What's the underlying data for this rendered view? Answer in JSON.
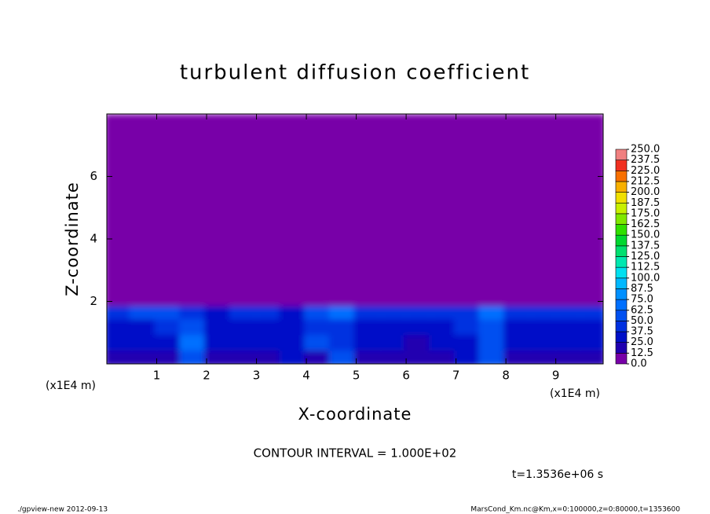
{
  "chart_data": {
    "type": "heatmap",
    "title": "turbulent diffusion coefficient",
    "x_label": "X-coordinate",
    "y_label": "Z-coordinate",
    "x_unit": "(x1E4 m)",
    "y_unit": "(x1E4 m)",
    "xlim": [
      0,
      9.95
    ],
    "ylim": [
      0,
      8
    ],
    "xticks": [
      1,
      2,
      3,
      4,
      5,
      6,
      7,
      8,
      9
    ],
    "yticks": [
      2,
      4,
      6
    ],
    "x_edges": [
      0,
      0.5,
      1,
      1.5,
      2,
      2.5,
      3,
      3.5,
      4,
      4.5,
      5,
      5.5,
      6,
      6.5,
      7,
      7.5,
      8,
      8.5,
      9,
      9.5,
      9.95
    ],
    "z_edges": [
      0,
      0.5,
      1,
      1.5,
      2,
      8
    ],
    "values": [
      [
        20,
        18,
        22,
        60,
        22,
        20,
        18,
        25,
        20,
        55,
        22,
        18,
        20,
        22,
        25,
        62,
        20,
        18,
        22,
        20
      ],
      [
        25,
        28,
        30,
        65,
        30,
        28,
        25,
        30,
        50,
        45,
        28,
        25,
        22,
        28,
        30,
        60,
        28,
        25,
        28,
        25
      ],
      [
        30,
        32,
        40,
        55,
        35,
        30,
        30,
        35,
        45,
        40,
        32,
        30,
        30,
        35,
        40,
        55,
        35,
        30,
        32,
        30
      ],
      [
        45,
        55,
        50,
        40,
        35,
        38,
        40,
        35,
        50,
        65,
        45,
        40,
        38,
        40,
        45,
        70,
        45,
        40,
        40,
        45
      ],
      [
        0,
        0,
        0,
        0,
        0,
        0,
        0,
        0,
        0,
        0,
        0,
        0,
        0,
        0,
        0,
        0,
        0,
        0,
        0,
        0
      ]
    ],
    "colorbar": {
      "ticks": [
        {
          "value": 0,
          "label": "0.0"
        },
        {
          "value": 12.5,
          "label": "12.5"
        },
        {
          "value": 25,
          "label": "25.0"
        },
        {
          "value": 37.5,
          "label": "37.5"
        },
        {
          "value": 50,
          "label": "50.0"
        },
        {
          "value": 62.5,
          "label": "62.5"
        },
        {
          "value": 75,
          "label": "75.0"
        },
        {
          "value": 87.5,
          "label": "87.5"
        },
        {
          "value": 100,
          "label": "100.0"
        },
        {
          "value": 112.5,
          "label": "112.5"
        },
        {
          "value": 125,
          "label": "125.0"
        },
        {
          "value": 137.5,
          "label": "137.5"
        },
        {
          "value": 150,
          "label": "150.0"
        },
        {
          "value": 162.5,
          "label": "162.5"
        },
        {
          "value": 175,
          "label": "175.0"
        },
        {
          "value": 187.5,
          "label": "187.5"
        },
        {
          "value": 200,
          "label": "200.0"
        },
        {
          "value": 212.5,
          "label": "212.5"
        },
        {
          "value": 225,
          "label": "225.0"
        },
        {
          "value": 237.5,
          "label": "237.5"
        },
        {
          "value": 250,
          "label": "250.0"
        }
      ],
      "colors": [
        "#7800a8",
        "#2000b0",
        "#0010c8",
        "#0030e0",
        "#0050f0",
        "#0070ff",
        "#0090ff",
        "#00b8ff",
        "#00e0f0",
        "#00e8b0",
        "#00e070",
        "#00d830",
        "#30e000",
        "#80e800",
        "#c8f000",
        "#f0e000",
        "#f8b000",
        "#f87000",
        "#f03020",
        "#f08080"
      ]
    },
    "contour_interval": "CONTOUR INTERVAL = 1.000E+02",
    "time_label": "t=1.3536e+06 s",
    "footer_left": "./gpview-new  2012-09-13",
    "footer_right": "MarsCond_Km.nc@Km,x=0:100000,z=0:80000,t=1353600"
  }
}
